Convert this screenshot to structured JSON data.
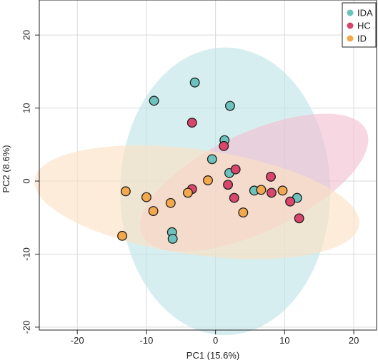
{
  "chart_data": {
    "type": "scatter",
    "xlabel": "PC1 (15.6%)",
    "ylabel": "PC2 (8.6%)",
    "xlim": [
      -25.5,
      23.3
    ],
    "ylim": [
      -20.4,
      24.8
    ],
    "xticks": [
      -20,
      -10,
      0,
      10,
      20
    ],
    "yticks": [
      -20,
      -10,
      0,
      10,
      20
    ],
    "grid": true,
    "legend_position": "top-right",
    "series": [
      {
        "name": "IDA",
        "color": "#6cc3bd",
        "ellipse": {
          "cx": 1.4,
          "cy": -1.4,
          "rx": 15.2,
          "ry": 19.7,
          "angle": 0,
          "color": "#bfe4e6"
        },
        "points": [
          [
            -3,
            13.5
          ],
          [
            -8.9,
            11
          ],
          [
            2.1,
            10.3
          ],
          [
            1.3,
            5.6
          ],
          [
            -0.5,
            3
          ],
          [
            2,
            1.1
          ],
          [
            5.6,
            -1.3
          ],
          [
            11.8,
            -2.3
          ],
          [
            -6.3,
            -7
          ],
          [
            -6.2,
            -7.9
          ]
        ]
      },
      {
        "name": "HC",
        "color": "#d9456b",
        "ellipse": {
          "cx": 5.6,
          "cy": -0.2,
          "rx": 17.9,
          "ry": 6.8,
          "angle": -25,
          "color": "#f2bfd0"
        },
        "points": [
          [
            -3.4,
            8
          ],
          [
            1.2,
            4.8
          ],
          [
            2.9,
            1.6
          ],
          [
            1.8,
            -0.5
          ],
          [
            -3.4,
            -1.1
          ],
          [
            2.7,
            -2.3
          ],
          [
            8,
            0.6
          ],
          [
            8.1,
            -1.6
          ],
          [
            10.8,
            -2.8
          ],
          [
            12.1,
            -5.1
          ]
        ]
      },
      {
        "name": "ID",
        "color": "#f4a84d",
        "ellipse": {
          "cx": -2.7,
          "cy": -2.9,
          "rx": 23.7,
          "ry": 7.2,
          "angle": 8,
          "color": "#fbe1c1"
        },
        "points": [
          [
            -1.1,
            0.1
          ],
          [
            -13,
            -1.4
          ],
          [
            -10,
            -2.2
          ],
          [
            -4,
            -1.6
          ],
          [
            -6.5,
            -3
          ],
          [
            -9,
            -4.1
          ],
          [
            6.6,
            -1.2
          ],
          [
            9.7,
            -1.3
          ],
          [
            4,
            -4.3
          ],
          [
            -13.5,
            -7.5
          ]
        ]
      }
    ]
  }
}
